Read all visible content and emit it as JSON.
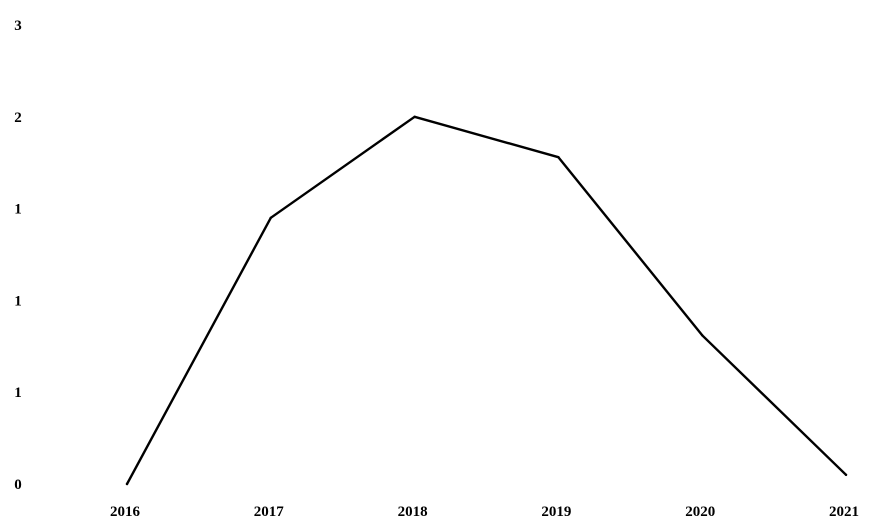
{
  "chart_data": {
    "type": "line",
    "x": [
      "2016",
      "2017",
      "2018",
      "2019",
      "2020",
      "2021"
    ],
    "series": [
      {
        "values": [
          0,
          1.45,
          2.0,
          1.78,
          0.81,
          0.05
        ]
      }
    ],
    "y_tick_labels": [
      "0",
      "1",
      "1",
      "1",
      "2",
      "3"
    ],
    "ylim": [
      0,
      2.5
    ],
    "grid": false,
    "legend": "none",
    "line_color": "#000000"
  }
}
